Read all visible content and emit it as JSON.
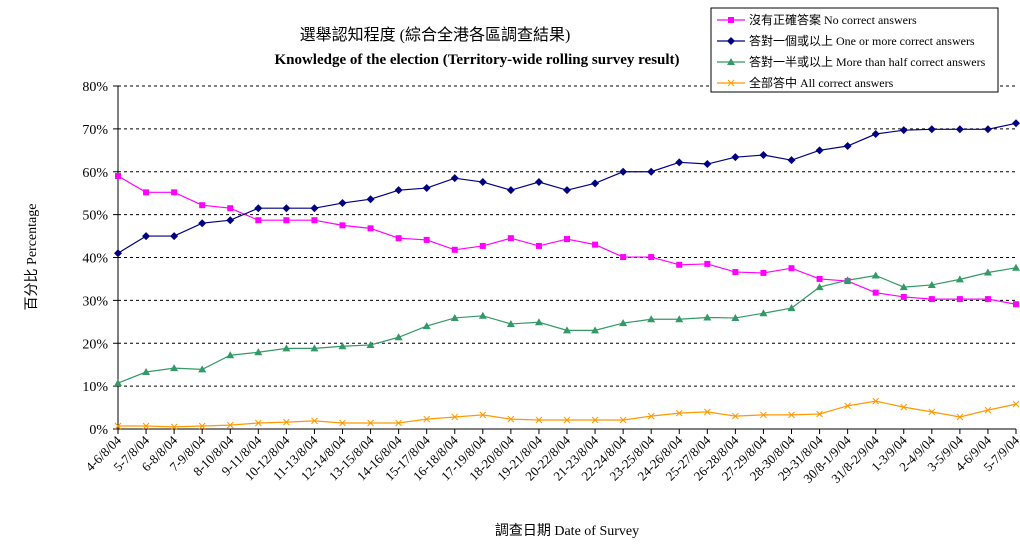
{
  "chart_data": {
    "type": "line",
    "title": "選舉認知程度 (綜合全港各區調查結果)",
    "subtitle": "Knowledge of the election (Territory-wide rolling survey result)",
    "xlabel": "調查日期 Date of Survey",
    "ylabel": "百分比 Percentage",
    "ylim": [
      0,
      80
    ],
    "yticks": [
      "0%",
      "10%",
      "20%",
      "30%",
      "40%",
      "50%",
      "60%",
      "70%",
      "80%"
    ],
    "grid": "horizontal dashed",
    "legend_position": "top-right",
    "categories": [
      "4-6/8/04",
      "5-7/8/04",
      "6-8/8/04",
      "7-9/8/04",
      "8-10/8/04",
      "9-11/8/04",
      "10-12/8/04",
      "11-13/8/04",
      "12-14/8/04",
      "13-15/8/04",
      "14-16/8/04",
      "15-17/8/04",
      "16-18/8/04",
      "17-19/8/04",
      "18-20/8/04",
      "19-21/8/04",
      "20-22/8/04",
      "21-23/8/04",
      "22-24/8/04",
      "23-25/8/04",
      "24-26/8/04",
      "25-27/8/04",
      "26-28/8/04",
      "27-29/8/04",
      "28-30/8/04",
      "29-31/8/04",
      "30/8-1/9/04",
      "31/8-2/9/04",
      "1-3/9/04",
      "2-4/9/04",
      "3-5/9/04",
      "4-6/9/04",
      "5-7/9/04"
    ],
    "series": [
      {
        "name": "沒有正確答案 No correct answers",
        "color": "#ff00ff",
        "marker": "square",
        "values": [
          59,
          55.2,
          55.2,
          52.2,
          51.5,
          48.7,
          48.7,
          48.7,
          47.5,
          46.8,
          44.5,
          44.1,
          41.8,
          42.7,
          44.5,
          42.7,
          44.3,
          43,
          40.1,
          40.1,
          38.3,
          38.5,
          36.6,
          36.4,
          37.5,
          35,
          34.5,
          31.8,
          30.8,
          30.3,
          30.3,
          30.3,
          29.1
        ]
      },
      {
        "name": "答對一個或以上 One or more correct answers",
        "color": "#000080",
        "marker": "diamond",
        "values": [
          41,
          45,
          45,
          48,
          48.7,
          51.5,
          51.5,
          51.5,
          52.7,
          53.6,
          55.7,
          56.2,
          58.5,
          57.6,
          55.7,
          57.6,
          55.7,
          57.3,
          60,
          60,
          62.2,
          61.8,
          63.4,
          63.9,
          62.7,
          65,
          66,
          68.8,
          69.7,
          69.9,
          69.9,
          69.9,
          71.3
        ]
      },
      {
        "name": "答對一半或以上 More than half correct answers",
        "color": "#339966",
        "marker": "triangle",
        "values": [
          10.7,
          13.3,
          14.2,
          13.9,
          17.2,
          17.9,
          18.8,
          18.8,
          19.3,
          19.6,
          21.4,
          24,
          25.9,
          26.4,
          24.5,
          24.9,
          23,
          23,
          24.7,
          25.6,
          25.6,
          26,
          25.9,
          27,
          28.2,
          33.1,
          34.7,
          35.8,
          33.1,
          33.6,
          34.9,
          36.5,
          37.6
        ]
      },
      {
        "name": "全部答中 All correct answers",
        "color": "#ff9900",
        "marker": "x",
        "values": [
          0.7,
          0.7,
          0.5,
          0.7,
          0.9,
          1.4,
          1.6,
          1.9,
          1.4,
          1.4,
          1.4,
          2.3,
          2.8,
          3.3,
          2.3,
          2.1,
          2.1,
          2.1,
          2.1,
          3.0,
          3.7,
          4.0,
          3.0,
          3.3,
          3.3,
          3.5,
          5.4,
          6.5,
          5.1,
          4.0,
          2.8,
          4.4,
          5.8
        ]
      }
    ]
  }
}
